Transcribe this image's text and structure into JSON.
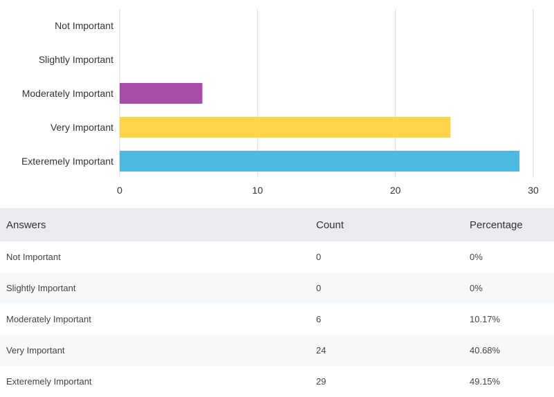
{
  "chart_data": {
    "type": "bar",
    "orientation": "horizontal",
    "categories": [
      "Not Important",
      "Slightly Important",
      "Moderately Important",
      "Very Important",
      "Exteremely Important"
    ],
    "values": [
      0,
      0,
      6,
      24,
      29
    ],
    "colors": [
      "#a94ea8",
      "#a94ea8",
      "#a94ea8",
      "#fed54a",
      "#4fbae1"
    ],
    "xlim": [
      0,
      30
    ],
    "xticks": [
      0,
      10,
      20,
      30
    ],
    "grid": true,
    "title": "",
    "xlabel": "",
    "ylabel": ""
  },
  "table": {
    "headers": {
      "answers": "Answers",
      "count": "Count",
      "percentage": "Percentage"
    },
    "rows": [
      {
        "answer": "Not Important",
        "count": "0",
        "percentage": "0%"
      },
      {
        "answer": "Slightly Important",
        "count": "0",
        "percentage": "0%"
      },
      {
        "answer": "Moderately Important",
        "count": "6",
        "percentage": "10.17%"
      },
      {
        "answer": "Very Important",
        "count": "24",
        "percentage": "40.68%"
      },
      {
        "answer": "Exteremely Important",
        "count": "29",
        "percentage": "49.15%"
      }
    ]
  }
}
